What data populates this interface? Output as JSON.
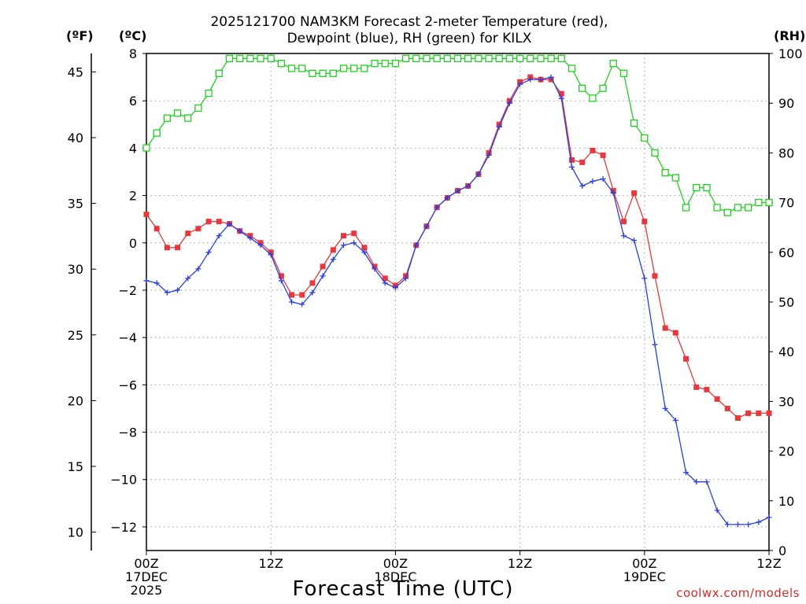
{
  "title_line1": "2025121700 NAM3KM Forecast 2-meter Temperature (red),",
  "title_line2": "Dewpoint (blue), RH (green) for KILX",
  "unit_f": "(ºF)",
  "unit_c": "(ºC)",
  "unit_rh": "(RH)",
  "xlabel": "Forecast Time (UTC)",
  "credit": "coolwx.com/models",
  "colors": {
    "temperature": "#e8383d",
    "dewpoint": "#2a3fdc",
    "rh": "#1fd11f"
  },
  "chart_data": {
    "type": "line",
    "title": "2025121700 NAM3KM Forecast 2-meter Temperature (red), Dewpoint (blue), RH (green) for KILX",
    "xlabel": "Forecast Time (UTC)",
    "x_unit": "forecast hour",
    "xlim": [
      0,
      60
    ],
    "x_ticks": [
      {
        "value": 0,
        "lines": [
          "00Z",
          "17DEC",
          "2025"
        ]
      },
      {
        "value": 12,
        "lines": [
          "12Z"
        ]
      },
      {
        "value": 24,
        "lines": [
          "00Z",
          "18DEC"
        ]
      },
      {
        "value": 36,
        "lines": [
          "12Z"
        ]
      },
      {
        "value": 48,
        "lines": [
          "00Z",
          "19DEC"
        ]
      },
      {
        "value": 60,
        "lines": [
          "12Z"
        ]
      }
    ],
    "ylim_c": [
      -13,
      8
    ],
    "y_ticks_c": [
      "8",
      "6",
      "4",
      "2",
      "0",
      "−2",
      "−4",
      "−6",
      "−8",
      "−10",
      "−12"
    ],
    "y_ticks_f": [
      "45",
      "40",
      "35",
      "30",
      "25",
      "20",
      "15",
      "10"
    ],
    "ylim_rh": [
      0,
      100
    ],
    "y_ticks_rh": [
      "100",
      "90",
      "80",
      "70",
      "60",
      "50",
      "40",
      "30",
      "20",
      "10",
      "0"
    ],
    "grid": true,
    "series": [
      {
        "name": "Temperature (red)",
        "unit": "C",
        "marker": "filled-square",
        "x": [
          0,
          1,
          2,
          3,
          4,
          5,
          6,
          7,
          8,
          9,
          10,
          11,
          12,
          13,
          14,
          15,
          16,
          17,
          18,
          19,
          20,
          21,
          22,
          23,
          24,
          25,
          26,
          27,
          28,
          29,
          30,
          31,
          32,
          33,
          34,
          35,
          36,
          37,
          38,
          39,
          40,
          41,
          42,
          43,
          44,
          45,
          46,
          47,
          48,
          49,
          50,
          51,
          52,
          53,
          54,
          55,
          56,
          57,
          58,
          59,
          60
        ],
        "values": [
          1.2,
          0.6,
          -0.2,
          -0.2,
          0.4,
          0.6,
          0.9,
          0.9,
          0.8,
          0.5,
          0.3,
          0.0,
          -0.4,
          -1.4,
          -2.2,
          -2.2,
          -1.7,
          -1.0,
          -0.3,
          0.3,
          0.4,
          -0.2,
          -1.0,
          -1.5,
          -1.8,
          -1.4,
          -0.1,
          0.7,
          1.5,
          1.9,
          2.2,
          2.4,
          2.9,
          3.8,
          5.0,
          6.0,
          6.8,
          7.0,
          6.9,
          6.9,
          6.3,
          3.5,
          3.4,
          3.9,
          3.7,
          2.2,
          0.9,
          2.1,
          0.9,
          -1.4,
          -3.6,
          -3.8,
          -4.9,
          -6.1,
          -6.2,
          -6.6,
          -7.0,
          -7.4,
          -7.2,
          -7.2,
          -7.2
        ]
      },
      {
        "name": "Dewpoint (blue)",
        "unit": "C",
        "marker": "plus",
        "x": [
          0,
          1,
          2,
          3,
          4,
          5,
          6,
          7,
          8,
          9,
          10,
          11,
          12,
          13,
          14,
          15,
          16,
          17,
          18,
          19,
          20,
          21,
          22,
          23,
          24,
          25,
          26,
          27,
          28,
          29,
          30,
          31,
          32,
          33,
          34,
          35,
          36,
          37,
          38,
          39,
          40,
          41,
          42,
          43,
          44,
          45,
          46,
          47,
          48,
          49,
          50,
          51,
          52,
          53,
          54,
          55,
          56,
          57,
          58,
          59,
          60
        ],
        "values": [
          -1.6,
          -1.7,
          -2.1,
          -2.0,
          -1.5,
          -1.1,
          -0.4,
          0.3,
          0.8,
          0.5,
          0.2,
          -0.1,
          -0.5,
          -1.6,
          -2.5,
          -2.6,
          -2.1,
          -1.4,
          -0.7,
          -0.1,
          0.0,
          -0.4,
          -1.1,
          -1.7,
          -1.9,
          -1.5,
          -0.1,
          0.7,
          1.5,
          1.9,
          2.2,
          2.4,
          2.9,
          3.7,
          4.9,
          5.9,
          6.7,
          6.9,
          6.9,
          7.0,
          6.1,
          3.2,
          2.4,
          2.6,
          2.7,
          2.1,
          0.3,
          0.1,
          -1.5,
          -4.3,
          -7.0,
          -7.5,
          -9.7,
          -10.1,
          -10.1,
          -11.3,
          -11.9,
          -11.9,
          -11.9,
          -11.8,
          -11.6
        ]
      },
      {
        "name": "RH (green)",
        "unit": "%",
        "marker": "open-square",
        "x": [
          0,
          1,
          2,
          3,
          4,
          5,
          6,
          7,
          8,
          9,
          10,
          11,
          12,
          13,
          14,
          15,
          16,
          17,
          18,
          19,
          20,
          21,
          22,
          23,
          24,
          25,
          26,
          27,
          28,
          29,
          30,
          31,
          32,
          33,
          34,
          35,
          36,
          37,
          38,
          39,
          40,
          41,
          42,
          43,
          44,
          45,
          46,
          47,
          48,
          49,
          50,
          51,
          52,
          53,
          54,
          55,
          56,
          57,
          58,
          59,
          60
        ],
        "values": [
          81,
          84,
          87,
          88,
          87,
          89,
          92,
          96,
          99,
          99,
          99,
          99,
          99,
          98,
          97,
          97,
          96,
          96,
          96,
          97,
          97,
          97,
          98,
          98,
          98,
          99,
          99,
          99,
          99,
          99,
          99,
          99,
          99,
          99,
          99,
          99,
          99,
          99,
          99,
          99,
          99,
          97,
          93,
          91,
          93,
          98,
          96,
          86,
          83,
          80,
          76,
          75,
          69,
          73,
          73,
          69,
          68,
          69,
          69,
          70,
          70
        ]
      }
    ]
  }
}
